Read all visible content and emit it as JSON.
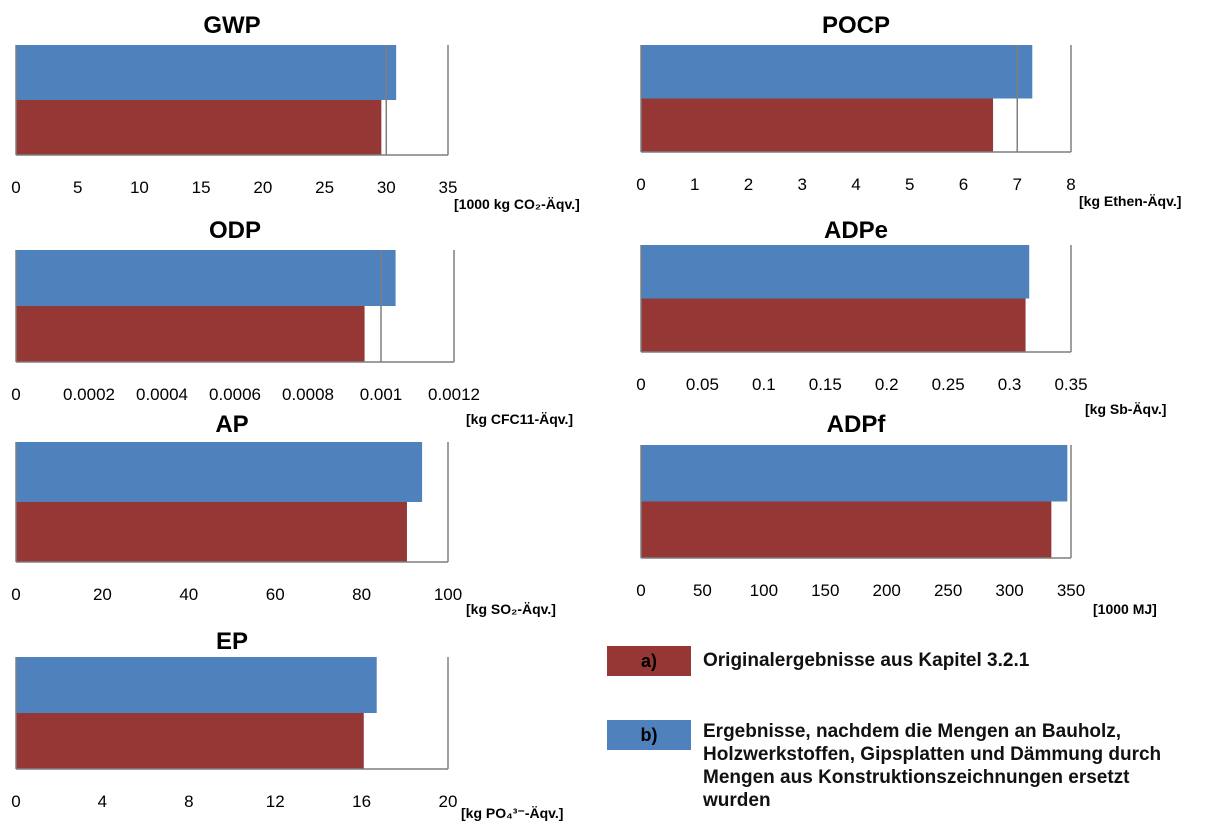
{
  "colors": {
    "a": "#953735",
    "b": "#4f81bd",
    "axis": "#7f7f7f"
  },
  "chart_data": [
    {
      "type": "bar",
      "orientation": "horizontal",
      "title": "GWP",
      "unit_label": "[1000 kg CO₂-Äqv.]",
      "series": [
        {
          "key": "b",
          "value": 30.8
        },
        {
          "key": "a",
          "value": 29.6
        }
      ],
      "xlim": [
        0,
        35
      ],
      "ticks": [
        "0",
        "5",
        "10",
        "15",
        "20",
        "25",
        "30",
        "35"
      ],
      "gridlines": [
        30,
        35
      ]
    },
    {
      "type": "bar",
      "orientation": "horizontal",
      "title": "POCP",
      "unit_label": "[kg Ethen-Äqv.]",
      "series": [
        {
          "key": "b",
          "value": 7.28
        },
        {
          "key": "a",
          "value": 6.55
        }
      ],
      "xlim": [
        0,
        8
      ],
      "ticks": [
        "0",
        "1",
        "2",
        "3",
        "4",
        "5",
        "6",
        "7",
        "8"
      ],
      "gridlines": [
        7,
        8
      ]
    },
    {
      "type": "bar",
      "orientation": "horizontal",
      "title": "ODP",
      "unit_label": "[kg CFC11-Äqv.]",
      "series": [
        {
          "key": "b",
          "value": 0.00104
        },
        {
          "key": "a",
          "value": 0.000955
        }
      ],
      "xlim": [
        0,
        0.0012
      ],
      "ticks": [
        "0",
        "0.0002",
        "0.0004",
        "0.0006",
        "0.0008",
        "0.001",
        "0.0012"
      ],
      "gridlines": [
        0.001,
        0.0012
      ]
    },
    {
      "type": "bar",
      "orientation": "horizontal",
      "title": "ADPe",
      "unit_label": "[kg Sb-Äqv.]",
      "series": [
        {
          "key": "b",
          "value": 0.316
        },
        {
          "key": "a",
          "value": 0.313
        }
      ],
      "xlim": [
        0,
        0.35
      ],
      "ticks": [
        "0",
        "0.05",
        "0.1",
        "0.15",
        "0.2",
        "0.25",
        "0.3",
        "0.35"
      ],
      "gridlines": [
        0.35
      ]
    },
    {
      "type": "bar",
      "orientation": "horizontal",
      "title": "AP",
      "unit_label": "[kg SO₂-Äqv.]",
      "series": [
        {
          "key": "b",
          "value": 94
        },
        {
          "key": "a",
          "value": 90.5
        }
      ],
      "xlim": [
        0,
        100
      ],
      "ticks": [
        "0",
        "20",
        "40",
        "60",
        "80",
        "100"
      ],
      "gridlines": [
        100
      ]
    },
    {
      "type": "bar",
      "orientation": "horizontal",
      "title": "ADPf",
      "unit_label": "[1000 MJ]",
      "series": [
        {
          "key": "b",
          "value": 347
        },
        {
          "key": "a",
          "value": 334
        }
      ],
      "xlim": [
        0,
        350
      ],
      "ticks": [
        "0",
        "50",
        "100",
        "150",
        "200",
        "250",
        "300",
        "350"
      ],
      "gridlines": [
        350
      ]
    },
    {
      "type": "bar",
      "orientation": "horizontal",
      "title": "EP",
      "unit_label": "[kg PO₄³⁻-Äqv.]",
      "series": [
        {
          "key": "b",
          "value": 16.7
        },
        {
          "key": "a",
          "value": 16.1
        }
      ],
      "xlim": [
        0,
        20
      ],
      "ticks": [
        "0",
        "4",
        "8",
        "12",
        "16",
        "20"
      ],
      "gridlines": [
        20
      ]
    }
  ],
  "legend": [
    {
      "key": "a",
      "swatch_label": "a)",
      "text": "Originalergebnisse aus Kapitel 3.2.1"
    },
    {
      "key": "b",
      "swatch_label": "b)",
      "text": "Ergebnisse, nachdem die Mengen an Bauholz, Holzwerkstoffen, Gipsplatten und Dämmung durch Mengen aus Konstruktionszeichnungen ersetzt wurden"
    }
  ]
}
